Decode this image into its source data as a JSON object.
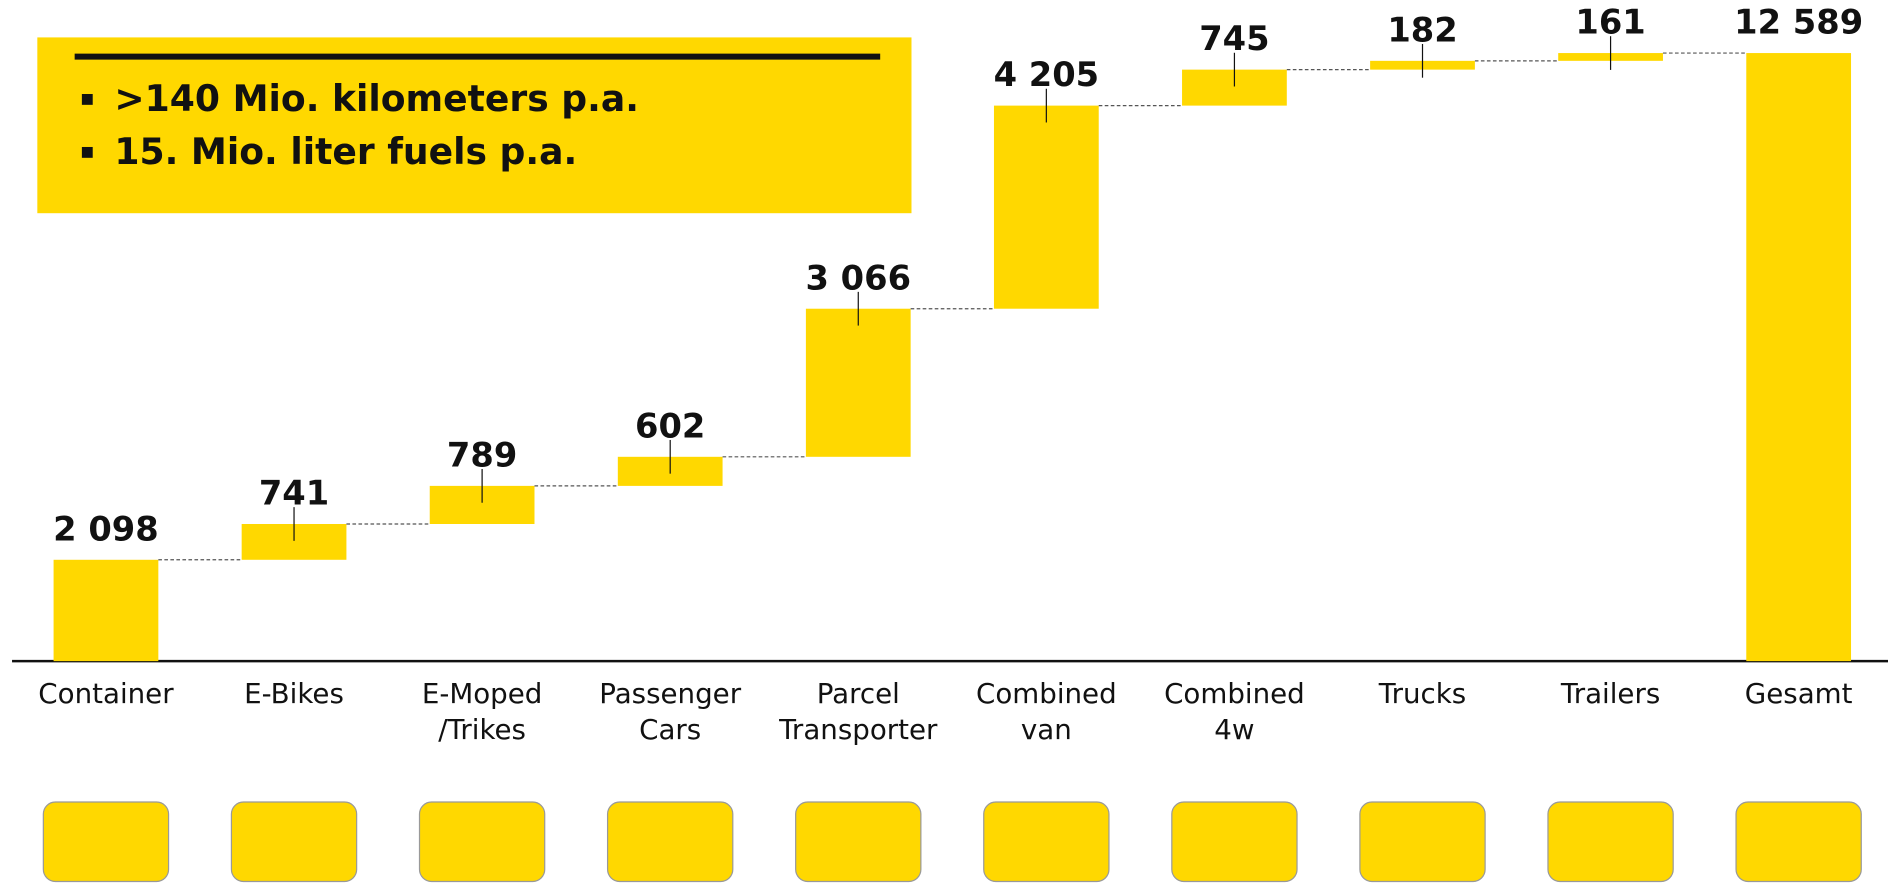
{
  "chart_data": {
    "type": "waterfall",
    "annotations": [
      ">140 Mio. kilometers p.a.",
      "15. Mio. liter fuels p.a."
    ],
    "categories": [
      [
        "Container"
      ],
      [
        "E-Bikes"
      ],
      [
        "E-Moped",
        "/Trikes"
      ],
      [
        "Passenger",
        "Cars"
      ],
      [
        "Parcel",
        "Transporter"
      ],
      [
        "Combined",
        "van"
      ],
      [
        "Combined",
        "4w"
      ],
      [
        "Trucks"
      ],
      [
        "Trailers"
      ],
      [
        "Gesamt"
      ]
    ],
    "values": [
      2098,
      741,
      789,
      602,
      3066,
      4205,
      745,
      182,
      161,
      12589
    ],
    "value_labels": [
      "2 098",
      "741",
      "789",
      "602",
      "3 066",
      "4 205",
      "745",
      "182",
      "161",
      "12 589"
    ],
    "color": "#FFD800"
  }
}
